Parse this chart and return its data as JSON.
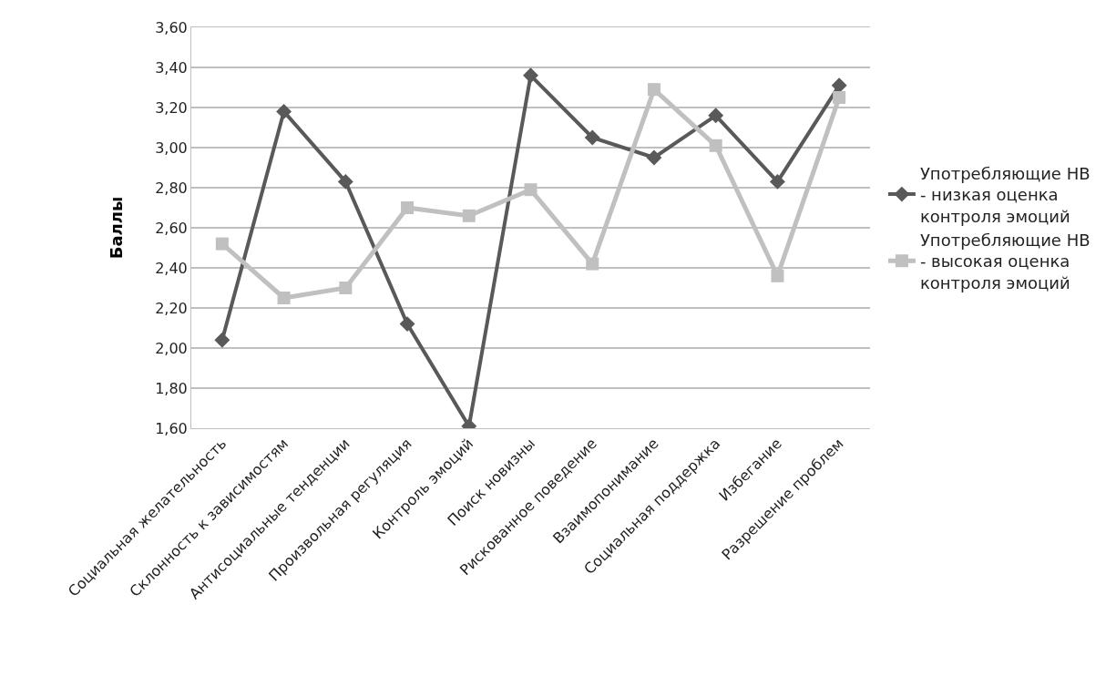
{
  "chart_data": {
    "type": "line",
    "ylabel": "Баллы",
    "categories": [
      "Социальная желательность",
      "Склонность к зависимостям",
      "Антисоциальные тенденции",
      "Произвольная регуляция",
      "Контроль эмоций",
      "Поиск новизны",
      "Рискованное поведение",
      "Взаимопонимание",
      "Социальная поддержка",
      "Избегание",
      "Разрешение проблем"
    ],
    "series": [
      {
        "name": "Употребляющие НВ - низкая оценка контроля эмоций",
        "color": "#595959",
        "marker": "diamond",
        "values": [
          2.04,
          3.18,
          2.83,
          2.12,
          1.61,
          3.36,
          3.05,
          2.95,
          3.16,
          2.83,
          3.31
        ]
      },
      {
        "name": "Употребляющие НВ - высокая оценка контроля эмоций",
        "color": "#c0c0c0",
        "marker": "square",
        "values": [
          2.52,
          2.25,
          2.3,
          2.7,
          2.66,
          2.79,
          2.42,
          3.29,
          3.01,
          2.36,
          3.25
        ]
      }
    ],
    "ylim": [
      1.6,
      3.6
    ],
    "yticks": [
      {
        "value": 1.6,
        "label": "1,60"
      },
      {
        "value": 1.8,
        "label": "1,80"
      },
      {
        "value": 2.0,
        "label": "2,00"
      },
      {
        "value": 2.2,
        "label": "2,20"
      },
      {
        "value": 2.4,
        "label": "2,40"
      },
      {
        "value": 2.6,
        "label": "2,60"
      },
      {
        "value": 2.8,
        "label": "2,80"
      },
      {
        "value": 3.0,
        "label": "3,00"
      },
      {
        "value": 3.2,
        "label": "3,20"
      },
      {
        "value": 3.4,
        "label": "3,40"
      },
      {
        "value": 3.6,
        "label": "3,60"
      }
    ],
    "grid": "y",
    "legend": "right"
  }
}
